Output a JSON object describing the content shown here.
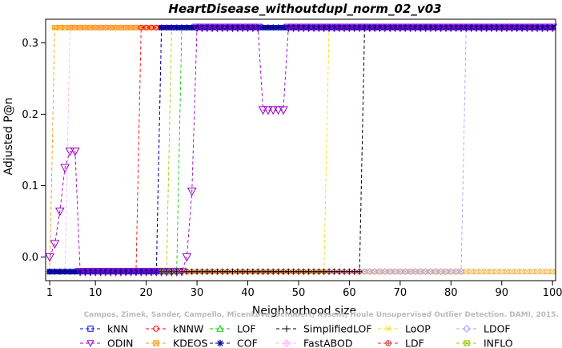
{
  "chart_data": {
    "type": "line",
    "title": "HeartDisease_withoutdupl_norm_02_v03",
    "xlabel": "Neighborhood size",
    "ylabel": "Adjusted P@n",
    "xlim": [
      0.2,
      100.6
    ],
    "ylim": [
      -0.033,
      0.333
    ],
    "xticks": [
      1,
      10,
      20,
      30,
      40,
      50,
      60,
      70,
      80,
      90,
      100
    ],
    "yticks": [
      0.0,
      0.1,
      0.2,
      0.3
    ],
    "ytick_labels": [
      "0.0",
      "0.1",
      "0.2",
      "0.3"
    ],
    "grid": false,
    "legend_placement": "bottom",
    "watermark": "Campos, Zimek, Sander, Campello, Micenkova, Schubert, Assent, Houle Unsupervised Outlier Detection. DAMI, 2015.",
    "low": -0.0204,
    "high": 0.3214,
    "series": [
      {
        "name": "kNN",
        "color": "#0000ff",
        "marker": "square",
        "dash": "4,3",
        "segments": [
          [
            1,
            22,
            "low"
          ],
          [
            23,
            100,
            "high"
          ]
        ]
      },
      {
        "name": "kNNW",
        "color": "#ff0000",
        "marker": "circle",
        "dash": "4,3",
        "segments": [
          [
            1,
            18,
            "low"
          ],
          [
            19,
            100,
            "high"
          ]
        ]
      },
      {
        "name": "LOF",
        "color": "#00cc00",
        "marker": "triangle",
        "dash": "4,3",
        "segments": [
          [
            1,
            26,
            "low"
          ],
          [
            27,
            100,
            "high"
          ]
        ]
      },
      {
        "name": "SimplifiedLOF",
        "color": "#000000",
        "marker": "plus",
        "dash": "4,3",
        "segments": [
          [
            1,
            62,
            "low"
          ],
          [
            63,
            100,
            "high"
          ]
        ]
      },
      {
        "name": "LoOP",
        "color": "#e6e600",
        "marker": "x",
        "dash": "4,3",
        "segments": [
          [
            1,
            55,
            "low"
          ],
          [
            56,
            100,
            "high"
          ]
        ]
      },
      {
        "name": "LDOF",
        "color": "#b0a0ff",
        "marker": "diamond",
        "dash": "4,3",
        "segments": [
          [
            1,
            82,
            "low"
          ],
          [
            83,
            100,
            "high"
          ]
        ]
      },
      {
        "name": "ODIN",
        "color": "#9900cc",
        "marker": "triangle-down",
        "dash": "4,3",
        "points": [
          [
            1,
            0.0
          ],
          [
            2,
            0.0185
          ],
          [
            3,
            0.064
          ],
          [
            4,
            0.125
          ],
          [
            5,
            0.148
          ],
          [
            6,
            0.148
          ]
        ],
        "segments": [
          [
            7,
            27,
            "low"
          ],
          [
            28,
            28,
            0.0
          ],
          [
            29,
            29,
            0.092
          ],
          [
            30,
            42,
            "high"
          ],
          [
            43,
            47,
            0.206
          ],
          [
            48,
            100,
            "high"
          ]
        ]
      },
      {
        "name": "KDEOS",
        "color": "#ff9900",
        "marker": "square-x",
        "dash": "4,3",
        "segments": [
          [
            1,
            1,
            "low"
          ],
          [
            2,
            100,
            "high"
          ]
        ]
      },
      {
        "name": "COF",
        "color": "#000099",
        "marker": "star",
        "dash": "4,3",
        "segments": [
          [
            1,
            22,
            "low"
          ],
          [
            23,
            100,
            "high"
          ]
        ]
      },
      {
        "name": "FastABOD",
        "color": "#ffb0ff",
        "marker": "diamond-plus",
        "dash": "4,3",
        "segments": [
          [
            1,
            4,
            "low"
          ],
          [
            5,
            100,
            "high"
          ]
        ]
      },
      {
        "name": "LDF",
        "color": "#cc3333",
        "marker": "circle-plus",
        "dash": "4,3",
        "segments": [
          [
            1,
            62,
            "low"
          ],
          [
            63,
            100,
            "high"
          ]
        ]
      },
      {
        "name": "INFLO",
        "color": "#99cc00",
        "marker": "square-star",
        "dash": "4,3",
        "segments": [
          [
            1,
            24,
            "low"
          ],
          [
            25,
            100,
            "high"
          ]
        ]
      }
    ],
    "bottom_layer": {
      "name": "KDEOS",
      "color": "#f0c060",
      "from": 63,
      "to": 100,
      "value": -0.0204
    }
  }
}
